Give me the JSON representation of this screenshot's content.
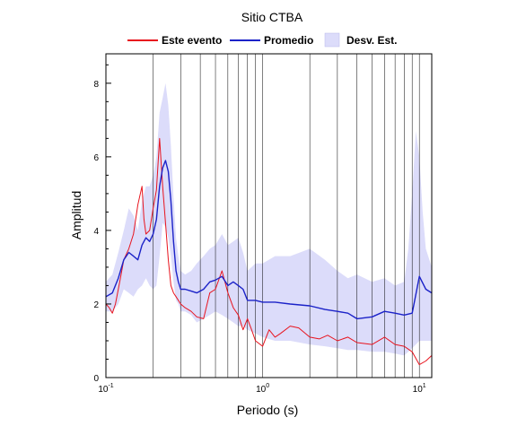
{
  "chart_data": {
    "type": "line",
    "title": "Sitio CTBA",
    "xlabel": "Periodo (s)",
    "ylabel": "Amplitud",
    "x_scale": "log",
    "xlim": [
      0.1,
      12
    ],
    "ylim": [
      0,
      8.8
    ],
    "x_ticks": [
      {
        "value": 0.1,
        "base": "10",
        "exp": "-1"
      },
      {
        "value": 1,
        "base": "10",
        "exp": "0"
      },
      {
        "value": 10,
        "base": "10",
        "exp": "1"
      }
    ],
    "y_ticks": [
      0,
      2,
      4,
      6,
      8
    ],
    "grid": "vertical",
    "legend_position": "top",
    "legend": [
      {
        "label": "Este evento",
        "kind": "line",
        "color": "#e8141e"
      },
      {
        "label": "Promedio",
        "kind": "line",
        "color": "#1b22c8"
      },
      {
        "label": "Desv. Est.",
        "kind": "band",
        "color": "#dcdcfa"
      }
    ],
    "series": [
      {
        "name": "Este evento",
        "color": "#e8141e",
        "x": [
          0.1,
          0.105,
          0.11,
          0.115,
          0.12,
          0.125,
          0.13,
          0.14,
          0.15,
          0.16,
          0.17,
          0.175,
          0.18,
          0.19,
          0.2,
          0.21,
          0.22,
          0.23,
          0.24,
          0.25,
          0.26,
          0.27,
          0.28,
          0.29,
          0.3,
          0.32,
          0.35,
          0.38,
          0.42,
          0.46,
          0.5,
          0.55,
          0.6,
          0.65,
          0.7,
          0.75,
          0.8,
          0.85,
          0.9,
          1.0,
          1.1,
          1.2,
          1.3,
          1.5,
          1.7,
          2.0,
          2.3,
          2.6,
          3.0,
          3.5,
          4.0,
          5.0,
          6.0,
          7.0,
          8.0,
          9.0,
          10.0,
          11.0,
          12.0
        ],
        "y": [
          2.0,
          1.9,
          1.75,
          2.0,
          2.4,
          2.8,
          3.2,
          3.5,
          3.9,
          4.7,
          5.2,
          4.3,
          3.9,
          4.0,
          4.6,
          5.1,
          6.5,
          5.2,
          4.2,
          3.2,
          2.5,
          2.3,
          2.2,
          2.1,
          2.0,
          1.9,
          1.8,
          1.65,
          1.6,
          2.3,
          2.4,
          2.9,
          2.3,
          1.9,
          1.7,
          1.3,
          1.6,
          1.3,
          1.0,
          0.85,
          1.3,
          1.1,
          1.2,
          1.4,
          1.35,
          1.1,
          1.05,
          1.15,
          1.0,
          1.1,
          0.95,
          0.9,
          1.1,
          0.9,
          0.85,
          0.7,
          0.35,
          0.45,
          0.6
        ]
      },
      {
        "name": "Promedio",
        "color": "#1b22c8",
        "x": [
          0.1,
          0.11,
          0.12,
          0.13,
          0.14,
          0.15,
          0.16,
          0.17,
          0.18,
          0.19,
          0.2,
          0.21,
          0.22,
          0.23,
          0.24,
          0.25,
          0.26,
          0.27,
          0.28,
          0.29,
          0.3,
          0.32,
          0.35,
          0.38,
          0.42,
          0.46,
          0.5,
          0.55,
          0.6,
          0.65,
          0.7,
          0.75,
          0.8,
          0.9,
          1.0,
          1.2,
          1.5,
          2.0,
          2.5,
          3.0,
          3.5,
          4.0,
          5.0,
          6.0,
          7.0,
          8.0,
          9.0,
          10.0,
          11.0,
          12.0
        ],
        "y": [
          2.2,
          2.3,
          2.7,
          3.2,
          3.4,
          3.3,
          3.2,
          3.6,
          3.8,
          3.7,
          3.9,
          4.3,
          5.2,
          5.7,
          5.9,
          5.6,
          4.8,
          3.7,
          2.9,
          2.6,
          2.4,
          2.4,
          2.35,
          2.3,
          2.4,
          2.6,
          2.65,
          2.75,
          2.5,
          2.6,
          2.5,
          2.4,
          2.1,
          2.1,
          2.05,
          2.05,
          2.0,
          1.95,
          1.85,
          1.8,
          1.75,
          1.6,
          1.65,
          1.8,
          1.75,
          1.7,
          1.75,
          2.75,
          2.4,
          2.3
        ]
      }
    ],
    "band": {
      "name": "Desv. Est.",
      "color": "#dcdcfa",
      "x": [
        0.1,
        0.11,
        0.12,
        0.13,
        0.14,
        0.15,
        0.16,
        0.17,
        0.18,
        0.19,
        0.2,
        0.21,
        0.22,
        0.23,
        0.24,
        0.25,
        0.26,
        0.27,
        0.28,
        0.29,
        0.3,
        0.32,
        0.35,
        0.38,
        0.42,
        0.46,
        0.5,
        0.55,
        0.6,
        0.65,
        0.7,
        0.75,
        0.8,
        0.9,
        1.0,
        1.2,
        1.5,
        2.0,
        2.5,
        3.0,
        3.5,
        4.0,
        5.0,
        6.0,
        7.0,
        8.0,
        8.5,
        9.0,
        9.5,
        10.0,
        10.5,
        11.0,
        12.0
      ],
      "upper": [
        2.6,
        2.8,
        3.4,
        4.0,
        4.6,
        4.4,
        4.0,
        4.8,
        5.2,
        5.2,
        5.5,
        6.0,
        7.2,
        7.6,
        8.0,
        7.4,
        6.3,
        4.9,
        3.8,
        3.3,
        2.9,
        2.8,
        2.9,
        3.1,
        3.3,
        3.5,
        3.6,
        3.9,
        3.6,
        3.7,
        3.8,
        3.4,
        2.9,
        3.1,
        3.1,
        3.3,
        3.3,
        3.5,
        3.2,
        2.9,
        2.7,
        2.8,
        2.6,
        2.7,
        2.5,
        2.6,
        3.5,
        5.0,
        6.7,
        6.0,
        4.5,
        3.5,
        3.0
      ],
      "lower": [
        1.8,
        1.8,
        2.0,
        2.4,
        2.3,
        2.2,
        2.4,
        2.5,
        2.7,
        2.5,
        2.4,
        2.5,
        3.3,
        4.2,
        4.1,
        3.8,
        3.3,
        2.6,
        2.1,
        2.0,
        1.8,
        1.8,
        1.7,
        1.5,
        1.6,
        1.7,
        1.8,
        1.7,
        1.6,
        1.5,
        1.4,
        1.4,
        1.3,
        1.2,
        1.1,
        1.0,
        1.0,
        0.9,
        0.85,
        0.8,
        0.75,
        0.75,
        0.7,
        0.7,
        0.65,
        0.6,
        0.7,
        0.8,
        0.9,
        1.0,
        1.0,
        1.0,
        1.0
      ]
    }
  }
}
